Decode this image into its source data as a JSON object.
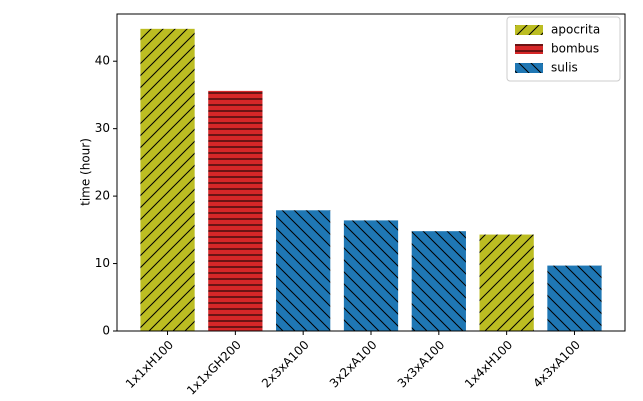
{
  "chart_data": {
    "type": "bar",
    "ylabel": "time (hour)",
    "categories": [
      "1x1xH100",
      "1x1xGH200",
      "2x3xA100",
      "3x2xA100",
      "3x3xA100",
      "1x4xH100",
      "4x3xA100"
    ],
    "series": [
      {
        "name": "apocrita",
        "color": "#bcbd22",
        "hatch": "/",
        "values": [
          44.8,
          null,
          null,
          null,
          null,
          14.3,
          null
        ]
      },
      {
        "name": "bombus",
        "color": "#d62728",
        "hatch": "-",
        "values": [
          null,
          35.6,
          null,
          null,
          null,
          null,
          null
        ]
      },
      {
        "name": "sulis",
        "color": "#1f77b4",
        "hatch": "\\",
        "values": [
          null,
          null,
          17.9,
          16.4,
          14.8,
          null,
          9.7
        ]
      }
    ],
    "ylim": [
      0,
      47
    ],
    "yticks": [
      0,
      10,
      20,
      30,
      40
    ],
    "grid": false,
    "legend": "upper right"
  }
}
